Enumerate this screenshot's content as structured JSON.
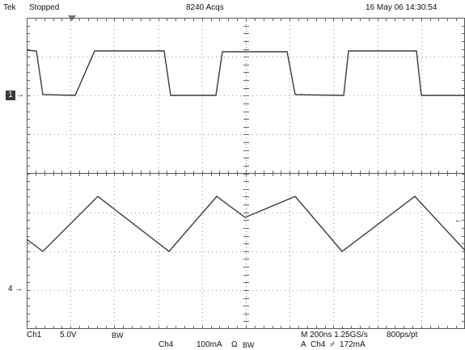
{
  "header": {
    "brand": "Tek",
    "run_state": "Stopped",
    "acquisitions": "8240 Acqs",
    "datetime": "16 May 06 14:30:54"
  },
  "markers": {
    "ch1": "1",
    "ch4": "4"
  },
  "footer": {
    "ch1_label": "Ch1",
    "ch1_scale": "5.0V",
    "ch1_bw": "BW",
    "ch4_label": "Ch4",
    "ch4_scale": "100mA",
    "ch4_coupling": "Ω",
    "ch4_bw": "BW",
    "timebase": "M 200ns 1.25GS/s",
    "record": "800ps/pt",
    "trigger_prefix": "A",
    "trigger_source": "Ch4",
    "trigger_slope": "⌿",
    "trigger_level": "172mA"
  },
  "colors": {
    "trace": "#3c3c3c",
    "grid_dot": "#9a9a9a",
    "frame": "#555555"
  }
}
